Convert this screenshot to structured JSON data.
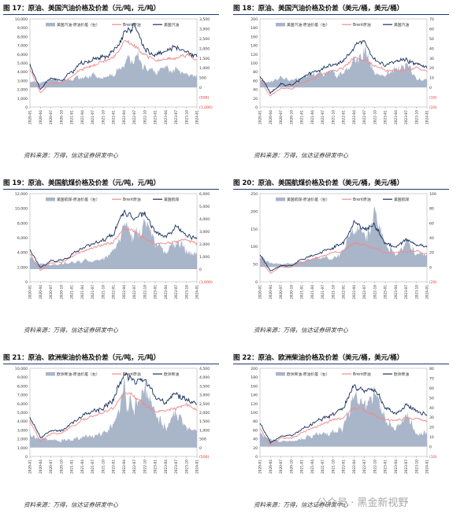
{
  "source_text": "资料来源：万得，信达证券研发中心",
  "watermark": "公众号 · 黑金新视野",
  "colors": {
    "spread": "#a9b5c9",
    "brent": "#f08a8a",
    "product": "#17305e",
    "neg_axis": "#e0302a"
  },
  "months": [
    "2020-01",
    "2020-04",
    "2020-07",
    "2020-10",
    "2021-01",
    "2021-04",
    "2021-07",
    "2021-10",
    "2022-01",
    "2022-04",
    "2022-07",
    "2022-10",
    "2023-01",
    "2023-04",
    "2023-07",
    "2023-10",
    "2024-01"
  ],
  "chart_data": [
    {
      "id": "fig17",
      "type": "area",
      "title": "图 17：原油、美国汽油价格及价差（元/吨，元/吨）",
      "legend": [
        "美国汽油-原油价差（右）",
        "Brent原油",
        "美国汽油"
      ],
      "left_ticks": [
        "10,000",
        "9,000",
        "8,000",
        "7,000",
        "6,000",
        "5,000",
        "4,000",
        "3,000",
        "2,000",
        "1,000",
        "0"
      ],
      "right_ticks": [
        "3,500",
        "3,000",
        "2,500",
        "2,000",
        "1,500",
        "1,000",
        "500",
        "0",
        "(500)",
        "(1,000)"
      ],
      "left_range": [
        0,
        10000
      ],
      "right_range": [
        -1000,
        3500
      ],
      "brent": [
        4300,
        1600,
        2700,
        2700,
        3500,
        4300,
        4700,
        5200,
        5600,
        7400,
        7000,
        6000,
        5200,
        5400,
        5600,
        5900,
        5400
      ],
      "product": [
        4800,
        2000,
        3300,
        3100,
        4000,
        4900,
        5400,
        5800,
        6100,
        8300,
        9200,
        6700,
        5900,
        6400,
        6800,
        6200,
        5700
      ],
      "spread": [
        300,
        200,
        450,
        280,
        450,
        500,
        600,
        500,
        550,
        1200,
        1650,
        950,
        700,
        1050,
        900,
        600,
        550
      ]
    },
    {
      "id": "fig18",
      "type": "area",
      "title": "图 18：原油、美国汽油价格及价差（美元/桶，美元/桶）",
      "legend": [
        "美国汽油-原油价差（右）",
        "Brent原油",
        "美国汽油"
      ],
      "left_ticks": [
        "200",
        "180",
        "160",
        "140",
        "120",
        "100",
        "80",
        "60",
        "40",
        "20",
        "0"
      ],
      "right_ticks": [
        "70",
        "60",
        "50",
        "40",
        "30",
        "20",
        "10",
        "0",
        "(10)",
        "(20)"
      ],
      "left_range": [
        0,
        200
      ],
      "right_range": [
        -20,
        70
      ],
      "brent": [
        64,
        25,
        43,
        41,
        55,
        64,
        74,
        83,
        88,
        110,
        106,
        94,
        82,
        83,
        86,
        88,
        80
      ],
      "product": [
        72,
        32,
        52,
        48,
        65,
        78,
        89,
        97,
        102,
        135,
        150,
        108,
        95,
        103,
        110,
        97,
        88
      ],
      "spread": [
        8,
        6,
        10,
        7,
        10,
        13,
        15,
        14,
        14,
        26,
        38,
        14,
        12,
        20,
        24,
        9,
        8
      ]
    },
    {
      "id": "fig19",
      "type": "area",
      "title": "图 19：原油、美国航煤价格及价差（元/吨，元/吨）",
      "legend": [
        "美国航煤-原油价差（右）",
        "Brent原油",
        "美国航煤"
      ],
      "left_ticks": [
        "12,000",
        "10,000",
        "8,000",
        "6,000",
        "4,000",
        "2,000",
        "0"
      ],
      "right_ticks": [
        "6,000",
        "5,000",
        "4,000",
        "3,000",
        "2,000",
        "1,000",
        "0",
        "(1,000)"
      ],
      "left_range": [
        0,
        12000
      ],
      "right_range": [
        -1000,
        6000
      ],
      "brent": [
        3800,
        1500,
        2600,
        2600,
        3400,
        4100,
        4600,
        5000,
        5400,
        7200,
        6800,
        5900,
        5100,
        5200,
        5500,
        5800,
        5300
      ],
      "product": [
        4300,
        1900,
        2800,
        2900,
        3700,
        4500,
        5100,
        5600,
        6500,
        9800,
        8500,
        9300,
        6800,
        6000,
        7400,
        6300,
        6000
      ],
      "spread": [
        900,
        450,
        350,
        450,
        500,
        600,
        700,
        800,
        1300,
        3200,
        2600,
        3600,
        2200,
        1200,
        2300,
        1400,
        1200
      ]
    },
    {
      "id": "fig20",
      "type": "area",
      "title": "图 20：原油、美国航煤价格及价差（美元/桶，美元/桶）",
      "legend": [
        "美国航煤-原油价差（右）",
        "Brent原油",
        "美国航煤"
      ],
      "left_ticks": [
        "250",
        "200",
        "150",
        "100",
        "50",
        "0"
      ],
      "right_ticks": [
        "100",
        "80",
        "60",
        "40",
        "20",
        "0",
        "(20)"
      ],
      "left_range": [
        0,
        250
      ],
      "right_range": [
        -20,
        100
      ],
      "brent": [
        63,
        24,
        42,
        41,
        54,
        63,
        73,
        83,
        88,
        110,
        105,
        93,
        82,
        82,
        86,
        88,
        80
      ],
      "product": [
        76,
        30,
        45,
        46,
        62,
        74,
        86,
        96,
        110,
        165,
        150,
        160,
        112,
        98,
        120,
        104,
        98
      ],
      "spread": [
        13,
        6,
        4,
        5,
        8,
        11,
        13,
        13,
        22,
        55,
        45,
        67,
        30,
        16,
        34,
        16,
        18
      ]
    },
    {
      "id": "fig21",
      "type": "area",
      "title": "图 21：原油、欧洲柴油价格及价差（元/吨，元/吨）",
      "legend": [
        "欧洲柴油-原油价差（右）",
        "Brent原油",
        "欧洲柴油"
      ],
      "left_ticks": [
        "10,000",
        "9,000",
        "8,000",
        "7,000",
        "6,000",
        "5,000",
        "4,000",
        "3,000",
        "2,000",
        "1,000",
        "0"
      ],
      "right_ticks": [
        "4,500",
        "4,000",
        "3,500",
        "3,000",
        "2,500",
        "2,000",
        "1,500",
        "1,000",
        "500",
        "0",
        "(500)"
      ],
      "left_range": [
        0,
        10000
      ],
      "right_range": [
        -500,
        4500
      ],
      "brent": [
        4000,
        1700,
        2600,
        2600,
        3400,
        4100,
        4600,
        5000,
        5400,
        7200,
        6800,
        5900,
        5100,
        5200,
        5500,
        5800,
        5300
      ],
      "product": [
        4500,
        2100,
        2900,
        2900,
        3700,
        4500,
        5100,
        5600,
        6400,
        9300,
        8500,
        8900,
        6800,
        6000,
        7100,
        6400,
        5900
      ],
      "spread": [
        800,
        500,
        400,
        400,
        500,
        600,
        650,
        700,
        1200,
        3000,
        2300,
        3200,
        1900,
        1100,
        2000,
        1200,
        1000
      ]
    },
    {
      "id": "fig22",
      "type": "area",
      "title": "图 22：原油、欧洲柴油价格及价差（美元/桶，美元/桶）",
      "legend": [
        "欧洲柴油-原油价差（右）",
        "Brent原油",
        "欧洲柴油"
      ],
      "left_ticks": [
        "200",
        "180",
        "160",
        "140",
        "120",
        "100",
        "80",
        "60",
        "40",
        "20",
        "0"
      ],
      "right_ticks": [
        "80",
        "70",
        "60",
        "50",
        "40",
        "30",
        "20",
        "10",
        "0",
        "(10)"
      ],
      "left_range": [
        0,
        200
      ],
      "right_range": [
        -10,
        80
      ],
      "brent": [
        63,
        24,
        42,
        41,
        54,
        63,
        73,
        83,
        88,
        110,
        105,
        93,
        82,
        82,
        86,
        88,
        80
      ],
      "product": [
        76,
        31,
        46,
        47,
        62,
        74,
        86,
        97,
        110,
        160,
        148,
        152,
        112,
        98,
        118,
        102,
        95
      ],
      "spread": [
        13,
        7,
        5,
        6,
        8,
        11,
        13,
        14,
        22,
        50,
        44,
        58,
        30,
        16,
        32,
        14,
        15
      ]
    }
  ]
}
